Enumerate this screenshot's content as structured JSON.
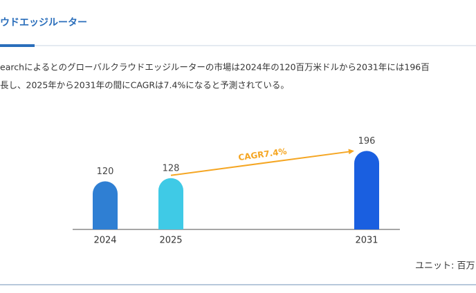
{
  "page": {
    "title": "ウドエッジルーター",
    "paragraph": [
      "earchによるとのグローバルクラウドエッジルーターの市場は2024年の120百万米ドルから2031年には196百",
      "長し、2025年から2031年の間にCAGRは7.4%になると予測されている。"
    ],
    "unit_note": "ユニット: 百万"
  },
  "chart_data": {
    "type": "bar",
    "categories": [
      "2024",
      "2025",
      "2031"
    ],
    "values": [
      120,
      128,
      196
    ],
    "colors": [
      "#2f7fd3",
      "#3fcae6",
      "#1a5fe0"
    ],
    "annotation": "CAGR7.4%",
    "annotation_color": "#f5a623"
  }
}
